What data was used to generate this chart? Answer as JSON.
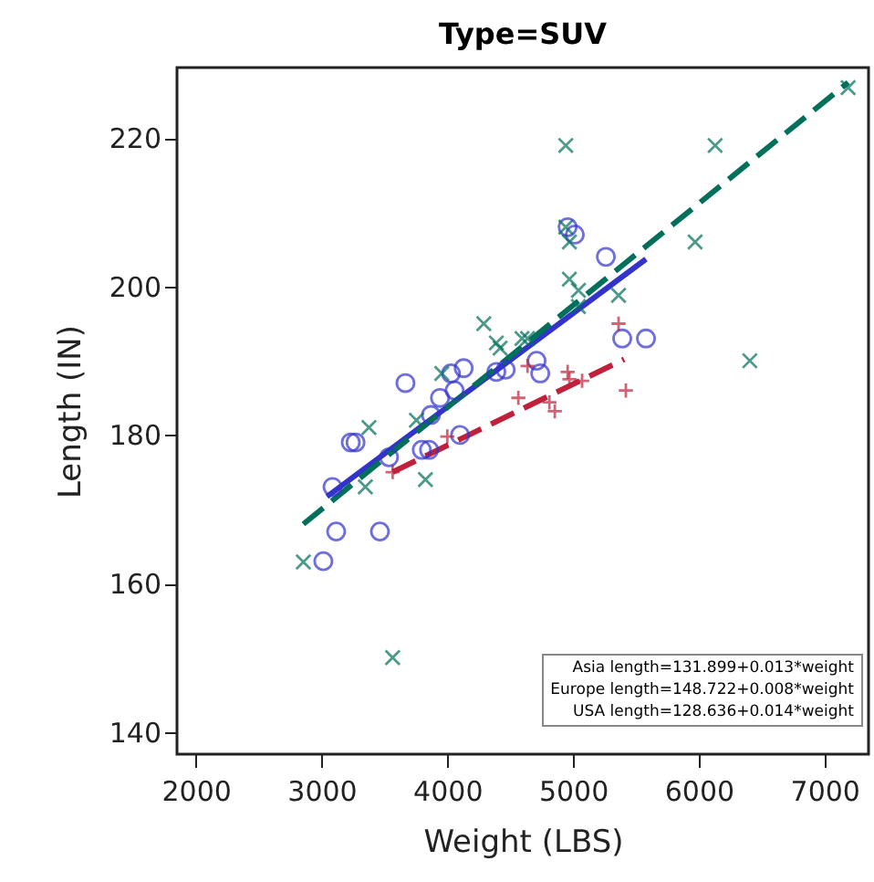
{
  "chart_data": {
    "type": "scatter",
    "title": "Type=SUV",
    "xlabel": "Weight (LBS)",
    "ylabel": "Length (IN)",
    "xlim": [
      1850,
      7350
    ],
    "ylim": [
      137,
      229.5
    ],
    "xticks": [
      2000,
      3000,
      4000,
      5000,
      6000,
      7000
    ],
    "yticks": [
      140,
      160,
      180,
      200,
      220
    ],
    "grid": false,
    "series": [
      {
        "color": "#3333cc",
        "marker": "circle",
        "x": [
          3667,
          3232,
          3270,
          3087,
          3116,
          3464,
          3014,
          3536,
          3797,
          3855,
          4101,
          3870,
          3942,
          4058,
          4029,
          4130,
          4957,
          5014,
          5261,
          5391,
          5580,
          4710,
          4739,
          4390,
          4464
        ],
        "values": [
          187,
          179,
          179,
          173,
          167,
          167,
          163,
          177,
          178,
          178,
          180,
          182.7,
          185,
          186,
          188.3,
          189,
          208,
          207,
          204,
          193,
          193,
          190,
          188.3,
          188.5,
          188.8
        ]
      },
      {
        "color": "#c0203a",
        "marker": "cross",
        "x": [
          3565,
          4000,
          5362,
          5420,
          4957,
          5072,
          4971,
          4565,
          4812,
          4855,
          4638
        ],
        "values": [
          175,
          179.8,
          195,
          186,
          188.5,
          187.3,
          187.5,
          185,
          184.4,
          183.2,
          189.3
        ]
      },
      {
        "color": "#00705a",
        "marker": "x",
        "x": [
          2855,
          3377,
          3348,
          3565,
          3826,
          3754,
          7188,
          4942,
          6130,
          5971,
          6406,
          4942,
          4971,
          4971,
          5043,
          5362,
          5043,
          4594,
          4390,
          4290,
          4638,
          4420,
          3956
        ],
        "values": [
          162.9,
          181,
          173,
          150,
          174,
          182,
          226.8,
          219,
          219,
          206,
          190,
          208,
          206,
          201,
          199.5,
          198.8,
          197.3,
          193,
          192.4,
          195,
          193,
          191.7,
          188.3
        ]
      },
      {
        "type": "line",
        "color": "#3333cc",
        "line_style": "solid",
        "x": [
          3043,
          5580
        ],
        "values": [
          171.7,
          203.7
        ]
      },
      {
        "type": "line",
        "color": "#c0203a",
        "line_style": "dashed",
        "x": [
          3565,
          5406
        ],
        "values": [
          175,
          190.2
        ]
      },
      {
        "type": "line",
        "color": "#00705a",
        "line_style": "dashed",
        "x": [
          2855,
          7188
        ],
        "values": [
          168,
          227.5
        ]
      }
    ],
    "annotations": [
      "Asia length=131.899+0.013*weight",
      "Europe length=148.722+0.008*weight",
      "USA length=128.636+0.014*weight"
    ]
  }
}
